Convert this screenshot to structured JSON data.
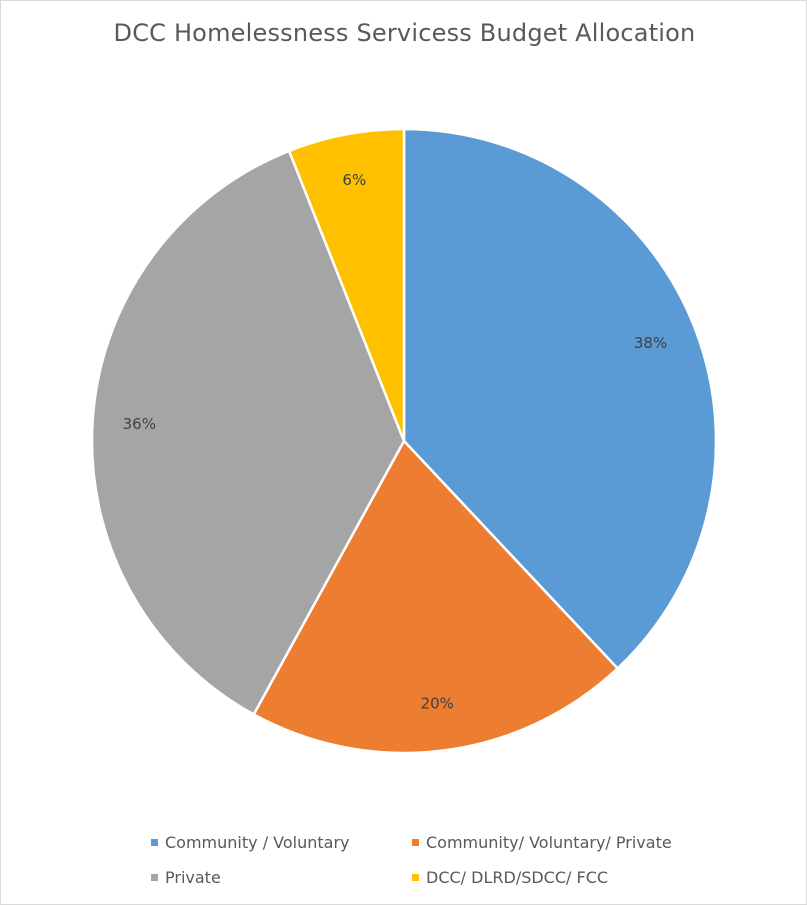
{
  "chart_data": {
    "type": "pie",
    "title": "DCC Homelessness Servicess Budget Allocation",
    "slices": [
      {
        "name": "Community / Voluntary",
        "value": 38,
        "label": "38%",
        "color": "#5b9bd5"
      },
      {
        "name": "Community/ Voluntary/ Private",
        "value": 20,
        "label": "20%",
        "color": "#ed7d31"
      },
      {
        "name": "Private",
        "value": 36,
        "label": "36%",
        "color": "#a5a5a5"
      },
      {
        "name": "DCC/ DLRD/SDCC/ FCC",
        "value": 6,
        "label": "6%",
        "color": "#ffc000"
      }
    ],
    "legend_position": "bottom"
  }
}
